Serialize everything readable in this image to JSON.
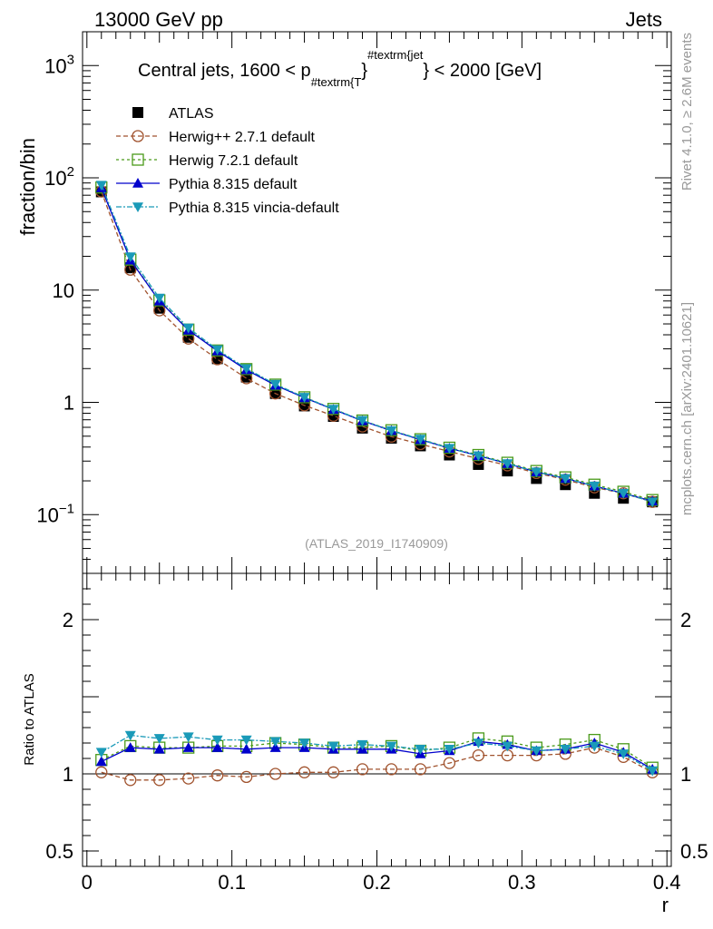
{
  "header": {
    "left": "13000 GeV pp",
    "right": "Jets"
  },
  "side": {
    "top": "Rivet 4.1.0, ≥ 2.6M events",
    "bottom": "mcplots.cern.ch [arXiv:2401.10621]"
  },
  "watermark": "(ATLAS_2019_I1740909)",
  "chart_data": {
    "type": "line",
    "title_parts": {
      "a": "Central jets, 1600 < p",
      "sub": "#textrm{T",
      "sup": "#textrm{jet",
      "close": "}",
      "b": "} < 2000 [GeV]"
    },
    "ylabel": "fraction/bin",
    "ratio_ylabel": "Ratio to ATLAS",
    "xlabel": "r",
    "yscale": "log",
    "ylim": [
      0.03,
      2000
    ],
    "ratio_ylim": [
      0.4,
      2.3
    ],
    "xlim": [
      -0.003,
      0.403
    ],
    "x": [
      0.01,
      0.03,
      0.05,
      0.07,
      0.09,
      0.11,
      0.13,
      0.15,
      0.17,
      0.19,
      0.21,
      0.23,
      0.25,
      0.27,
      0.29,
      0.31,
      0.33,
      0.35,
      0.37,
      0.39
    ],
    "main_ticks": [
      {
        "v": 1000,
        "base": "10",
        "exp": "3"
      },
      {
        "v": 100,
        "base": "10",
        "exp": "2"
      },
      {
        "v": 10,
        "base": "10",
        "exp": ""
      },
      {
        "v": 1,
        "base": "1",
        "exp": ""
      },
      {
        "v": 0.1,
        "base": "10",
        "exp": "−1"
      }
    ],
    "ratio_ticks": [
      {
        "v": 2,
        "label": "2"
      },
      {
        "v": 1,
        "label": "1"
      },
      {
        "v": 0.5,
        "label": "0.5"
      }
    ],
    "x_ticks": [
      {
        "v": 0,
        "label": "0"
      },
      {
        "v": 0.1,
        "label": "0.1"
      },
      {
        "v": 0.2,
        "label": "0.2"
      },
      {
        "v": 0.3,
        "label": "0.3"
      },
      {
        "v": 0.4,
        "label": "0.4"
      }
    ],
    "series": [
      {
        "name": "ATLAS",
        "color": "#000000",
        "marker": "square-filled",
        "dash": "none",
        "values": [
          75,
          15.8,
          6.9,
          3.8,
          2.45,
          1.68,
          1.2,
          0.93,
          0.75,
          0.59,
          0.48,
          0.41,
          0.34,
          0.28,
          0.245,
          0.21,
          0.185,
          0.155,
          0.14,
          0.13
        ],
        "ratio": [
          1,
          1,
          1,
          1,
          1,
          1,
          1,
          1,
          1,
          1,
          1,
          1,
          1,
          1,
          1,
          1,
          1,
          1,
          1,
          1
        ]
      },
      {
        "name": "Herwig++ 2.7.1 default",
        "color": "#a0522d",
        "marker": "circle-open",
        "dash": "5,3",
        "values": [
          75.6,
          15.2,
          6.6,
          3.7,
          2.42,
          1.64,
          1.2,
          0.94,
          0.76,
          0.61,
          0.495,
          0.425,
          0.365,
          0.315,
          0.275,
          0.235,
          0.205,
          0.175,
          0.155,
          0.13
        ],
        "ratio": [
          1.01,
          0.96,
          0.96,
          0.97,
          0.99,
          0.98,
          1.0,
          1.01,
          1.01,
          1.03,
          1.03,
          1.03,
          1.07,
          1.12,
          1.12,
          1.12,
          1.13,
          1.17,
          1.11,
          1.01
        ]
      },
      {
        "name": "Herwig 7.2.1 default",
        "color": "#4a9a1a",
        "marker": "square-open",
        "dash": "3,3",
        "values": [
          82,
          18.7,
          8.1,
          4.45,
          2.9,
          1.98,
          1.44,
          1.11,
          0.875,
          0.69,
          0.565,
          0.47,
          0.395,
          0.34,
          0.29,
          0.245,
          0.215,
          0.185,
          0.16,
          0.135
        ],
        "ratio": [
          1.09,
          1.18,
          1.17,
          1.17,
          1.18,
          1.18,
          1.2,
          1.19,
          1.17,
          1.17,
          1.18,
          1.15,
          1.17,
          1.23,
          1.21,
          1.17,
          1.19,
          1.22,
          1.16,
          1.04
        ]
      },
      {
        "name": "Pythia 8.315 default",
        "color": "#0000cc",
        "marker": "triangle-up",
        "dash": "none",
        "values": [
          81.5,
          18.5,
          8.0,
          4.4,
          2.87,
          1.95,
          1.42,
          1.1,
          0.865,
          0.685,
          0.56,
          0.465,
          0.39,
          0.335,
          0.285,
          0.24,
          0.21,
          0.18,
          0.155,
          0.132
        ],
        "ratio": [
          1.08,
          1.17,
          1.16,
          1.17,
          1.17,
          1.16,
          1.17,
          1.17,
          1.16,
          1.16,
          1.16,
          1.13,
          1.15,
          1.21,
          1.19,
          1.15,
          1.16,
          1.2,
          1.14,
          1.03
        ]
      },
      {
        "name": "Pythia 8.315 vincia-default",
        "color": "#1a9ab8",
        "marker": "triangle-down",
        "dash": "6,2,2,2",
        "values": [
          86,
          19.8,
          8.5,
          4.6,
          2.95,
          2.0,
          1.45,
          1.11,
          0.87,
          0.69,
          0.56,
          0.47,
          0.39,
          0.335,
          0.285,
          0.24,
          0.21,
          0.18,
          0.155,
          0.13
        ],
        "ratio": [
          1.14,
          1.25,
          1.23,
          1.24,
          1.22,
          1.22,
          1.21,
          1.2,
          1.18,
          1.19,
          1.18,
          1.16,
          1.16,
          1.2,
          1.18,
          1.15,
          1.16,
          1.18,
          1.13,
          1.02
        ]
      }
    ]
  }
}
